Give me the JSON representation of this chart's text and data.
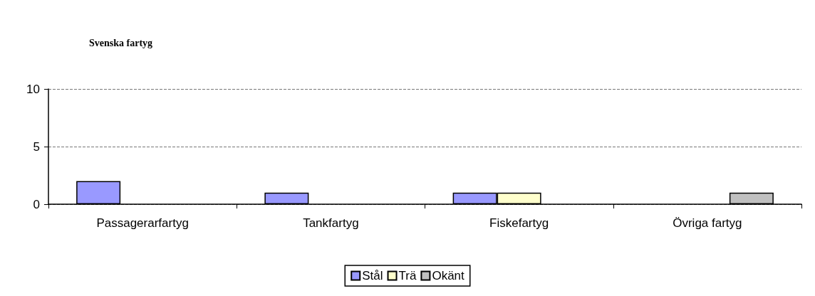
{
  "chart_data": {
    "type": "bar",
    "title": "Svenska fartyg",
    "categories": [
      "Passagerarfartyg",
      "Tankfartyg",
      "Fiskefartyg",
      "Övriga fartyg"
    ],
    "series": [
      {
        "name": "Stål",
        "color": "#9999ff",
        "values": [
          2,
          1,
          1,
          null
        ]
      },
      {
        "name": "Trä",
        "color": "#ffffcc",
        "values": [
          null,
          null,
          1,
          null
        ]
      },
      {
        "name": "Okänt",
        "color": "#c0c0c0",
        "values": [
          null,
          null,
          null,
          1
        ]
      }
    ],
    "ylim": [
      0,
      10
    ],
    "yticks": [
      0,
      5,
      10
    ],
    "grid": "y",
    "legend": "bottom"
  }
}
